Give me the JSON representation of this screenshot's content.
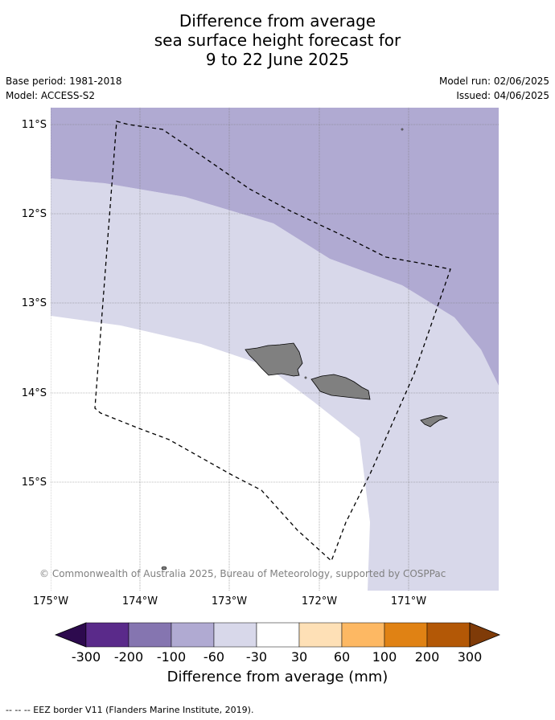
{
  "title": {
    "line1": "Difference from average",
    "line2": "sea surface height forecast for",
    "line3": "9 to 22 June 2025"
  },
  "meta": {
    "base_period": "Base period: 1981-2018",
    "model": "Model: ACCESS-S2",
    "model_run": "Model run: 02/06/2025",
    "issued": "Issued: 04/06/2025"
  },
  "map": {
    "lon_range": [
      -175.0,
      -170.0
    ],
    "lat_range": [
      -16.2,
      -10.8
    ],
    "lat_labels": [
      "11°S",
      "12°S",
      "13°S",
      "14°S",
      "15°S"
    ],
    "lon_labels": [
      "175°W",
      "174°W",
      "173°W",
      "172°W",
      "171°W"
    ],
    "land_color": "#808080",
    "credit": "© Commonwealth of Australia 2025, Bureau of Meteorology, supported by COSPPac"
  },
  "colorbar": {
    "title": "Difference from average (mm)",
    "ticks": [
      "-300",
      "-200",
      "-100",
      "-60",
      "-30",
      "30",
      "60",
      "100",
      "200",
      "300"
    ],
    "colors": [
      "#2d0a4e",
      "#5a2a8a",
      "#8575b0",
      "#b0aad2",
      "#d8d8ea",
      "#ffffff",
      "#fee0b6",
      "#fdb863",
      "#e08214",
      "#b35806",
      "#7f3b08"
    ]
  },
  "footer": "--  --  -- EEZ border V11 (Flanders Marine Institute, 2019)."
}
